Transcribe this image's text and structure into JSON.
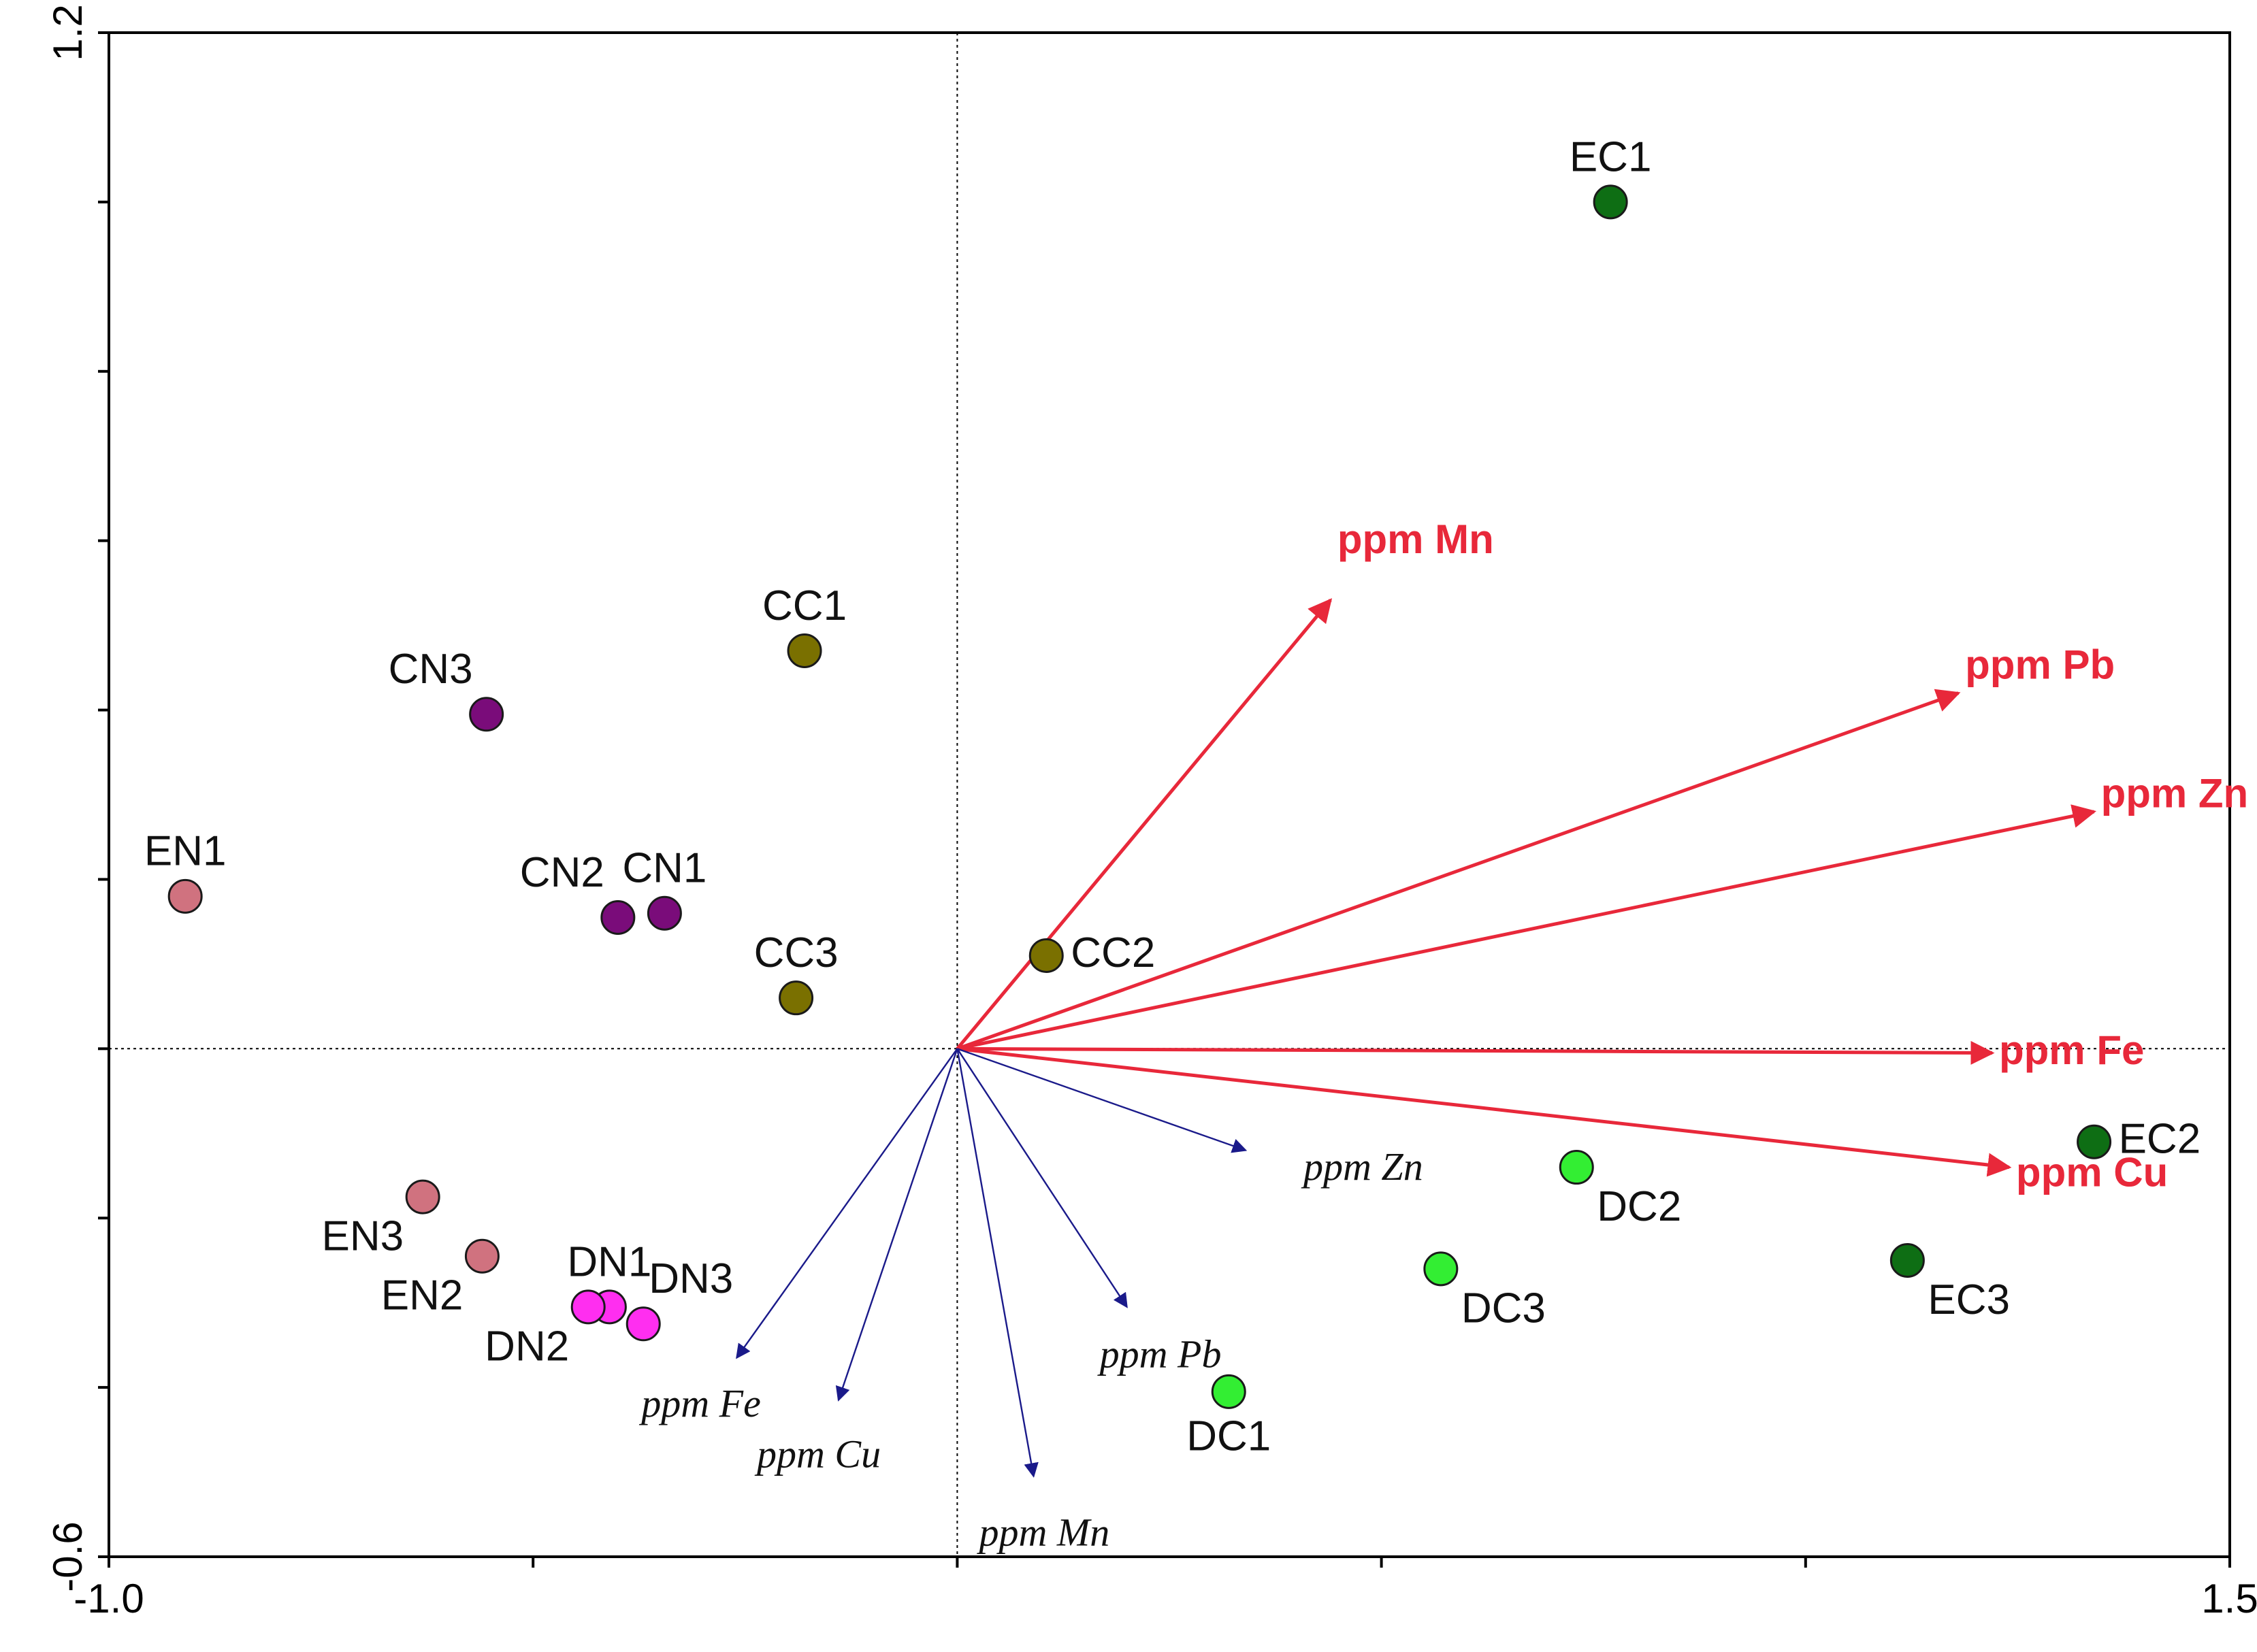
{
  "chart_data": {
    "type": "scatter",
    "subtype": "biplot",
    "title": "",
    "xlabel": "",
    "ylabel": "",
    "xlim": [
      -1.0,
      1.5
    ],
    "ylim": [
      -0.6,
      1.2
    ],
    "x_tick_labels": [
      {
        "value": -1.0,
        "label": "-1.0"
      },
      {
        "value": 1.5,
        "label": "1.5"
      }
    ],
    "y_tick_labels": [
      {
        "value": 1.2,
        "label": "1.2"
      },
      {
        "value": -0.6,
        "label": "-0.6"
      }
    ],
    "x_minor_ticks": [
      -0.5,
      0.0,
      0.5,
      1.0
    ],
    "y_minor_ticks": [
      1.0,
      0.8,
      0.6,
      0.4,
      0.2,
      0.0,
      -0.2,
      -0.4
    ],
    "reference_lines": {
      "x": 0.0,
      "y": 0.0
    },
    "points": [
      {
        "label": "EC1",
        "x": 0.77,
        "y": 1.0,
        "color": "#0e6e14",
        "label_pos": "above"
      },
      {
        "label": "EC2",
        "x": 1.34,
        "y": -0.11,
        "color": "#0e6e14",
        "label_pos": "right"
      },
      {
        "label": "EC3",
        "x": 1.12,
        "y": -0.25,
        "color": "#0e6e14",
        "label_pos": "below-right"
      },
      {
        "label": "DC1",
        "x": 0.32,
        "y": -0.405,
        "color": "#33ee33",
        "label_pos": "below"
      },
      {
        "label": "DC2",
        "x": 0.73,
        "y": -0.14,
        "color": "#33ee33",
        "label_pos": "below-right"
      },
      {
        "label": "DC3",
        "x": 0.57,
        "y": -0.26,
        "color": "#33ee33",
        "label_pos": "below-right"
      },
      {
        "label": "CC1",
        "x": -0.18,
        "y": 0.47,
        "color": "#7a7000",
        "label_pos": "above"
      },
      {
        "label": "CC2",
        "x": 0.105,
        "y": 0.11,
        "color": "#7a7000",
        "label_pos": "right"
      },
      {
        "label": "CC3",
        "x": -0.19,
        "y": 0.06,
        "color": "#7a7000",
        "label_pos": "above"
      },
      {
        "label": "CN1",
        "x": -0.345,
        "y": 0.16,
        "color": "#7a0c7a",
        "label_pos": "above"
      },
      {
        "label": "CN2",
        "x": -0.4,
        "y": 0.155,
        "color": "#7a0c7a",
        "label_pos": "above-left"
      },
      {
        "label": "CN3",
        "x": -0.555,
        "y": 0.395,
        "color": "#7a0c7a",
        "label_pos": "above-left"
      },
      {
        "label": "EN1",
        "x": -0.91,
        "y": 0.18,
        "color": "#d0727f",
        "label_pos": "above"
      },
      {
        "label": "EN2",
        "x": -0.56,
        "y": -0.245,
        "color": "#d0727f",
        "label_pos": "below-left"
      },
      {
        "label": "EN3",
        "x": -0.63,
        "y": -0.175,
        "color": "#d0727f",
        "label_pos": "below-left"
      },
      {
        "label": "DN1",
        "x": -0.41,
        "y": -0.305,
        "color": "#ff2ef0",
        "label_pos": "above"
      },
      {
        "label": "DN2",
        "x": -0.435,
        "y": -0.305,
        "color": "#ff2ef0",
        "label_pos": "below-left"
      },
      {
        "label": "DN3",
        "x": -0.37,
        "y": -0.325,
        "color": "#ff2ef0",
        "label_pos": "above-right"
      }
    ],
    "vectors": [
      {
        "series": "response",
        "label": "ppm Mn",
        "x": 0.44,
        "y": 0.53,
        "color": "#e8283a"
      },
      {
        "series": "response",
        "label": "ppm Pb",
        "x": 1.18,
        "y": 0.42,
        "color": "#e8283a"
      },
      {
        "series": "response",
        "label": "ppm Zn",
        "x": 1.34,
        "y": 0.28,
        "color": "#e8283a"
      },
      {
        "series": "response",
        "label": "ppm Fe",
        "x": 1.22,
        "y": -0.005,
        "color": "#e8283a"
      },
      {
        "series": "response",
        "label": "ppm Cu",
        "x": 1.24,
        "y": -0.14,
        "color": "#e8283a"
      },
      {
        "series": "explanatory",
        "label": "ppm Zn",
        "x": 0.34,
        "y": -0.12,
        "color": "#1a1a8a"
      },
      {
        "series": "explanatory",
        "label": "ppm Pb",
        "x": 0.2,
        "y": -0.305,
        "color": "#1a1a8a"
      },
      {
        "series": "explanatory",
        "label": "ppm Mn",
        "x": 0.09,
        "y": -0.505,
        "color": "#1a1a8a"
      },
      {
        "series": "explanatory",
        "label": "ppm Cu",
        "x": -0.14,
        "y": -0.415,
        "color": "#1a1a8a"
      },
      {
        "series": "explanatory",
        "label": "ppm Fe",
        "x": -0.26,
        "y": -0.365,
        "color": "#1a1a8a"
      }
    ]
  }
}
